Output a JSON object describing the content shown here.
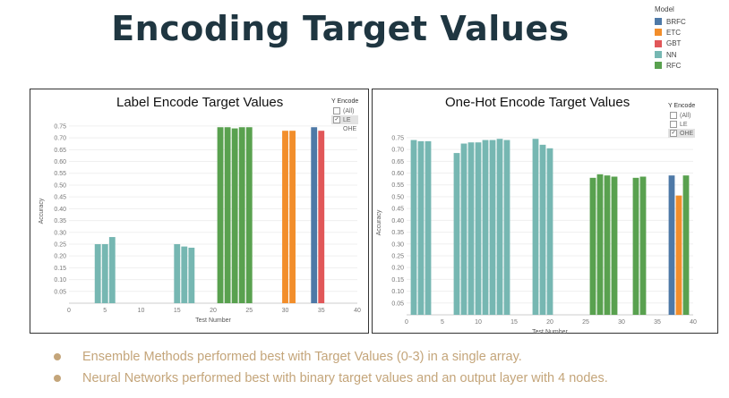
{
  "title": "Encoding Target Values",
  "legend": {
    "title": "Model",
    "items": [
      {
        "label": "BRFC",
        "color": "#4e79a7"
      },
      {
        "label": "ETC",
        "color": "#f28e2b"
      },
      {
        "label": "GBT",
        "color": "#e15759"
      },
      {
        "label": "NN",
        "color": "#76b7b2"
      },
      {
        "label": "RFC",
        "color": "#59a14f"
      }
    ]
  },
  "filter_le": {
    "title": "Y Encode",
    "options": [
      {
        "label": "(All)",
        "checked": false
      },
      {
        "label": "LE",
        "checked": true
      },
      {
        "label": "OHE",
        "checked": false
      }
    ]
  },
  "filter_ohe": {
    "title": "Y Encode",
    "options": [
      {
        "label": "(All)",
        "checked": false
      },
      {
        "label": "LE",
        "checked": false
      },
      {
        "label": "OHE",
        "checked": true
      }
    ]
  },
  "bullets": [
    "Ensemble Methods performed best with Target Values (0-3) in a single array.",
    "Neural Networks performed best with binary target values and an output layer with 4 nodes."
  ],
  "chart_data": [
    {
      "type": "bar",
      "title": "Label Encode Target Values",
      "xlabel": "Test Number",
      "ylabel": "Accuracy",
      "xlim": [
        0,
        40
      ],
      "ylim": [
        0,
        0.78
      ],
      "xticks": [
        0,
        5,
        10,
        15,
        20,
        25,
        30,
        35,
        40
      ],
      "yticks": [
        0.05,
        0.1,
        0.15,
        0.2,
        0.25,
        0.3,
        0.35,
        0.4,
        0.45,
        0.5,
        0.55,
        0.6,
        0.65,
        0.7,
        0.75
      ],
      "series": [
        {
          "name": "NN",
          "points": [
            [
              4,
              0.25
            ],
            [
              5,
              0.25
            ],
            [
              6,
              0.28
            ],
            [
              15,
              0.25
            ],
            [
              16,
              0.24
            ],
            [
              17,
              0.235
            ]
          ]
        },
        {
          "name": "RFC",
          "points": [
            [
              21,
              0.745
            ],
            [
              22,
              0.745
            ],
            [
              23,
              0.74
            ],
            [
              24,
              0.745
            ],
            [
              25,
              0.745
            ]
          ]
        },
        {
          "name": "ETC",
          "points": [
            [
              30,
              0.73
            ],
            [
              31,
              0.73
            ]
          ]
        },
        {
          "name": "BRFC",
          "points": [
            [
              34,
              0.745
            ]
          ]
        },
        {
          "name": "GBT",
          "points": [
            [
              35,
              0.73
            ]
          ]
        }
      ]
    },
    {
      "type": "bar",
      "title": "One-Hot Encode Target Values",
      "xlabel": "Test Number",
      "ylabel": "Accuracy",
      "xlim": [
        0,
        40
      ],
      "ylim": [
        0,
        0.78
      ],
      "xticks": [
        0,
        5,
        10,
        15,
        20,
        25,
        30,
        35,
        40
      ],
      "yticks": [
        0.05,
        0.1,
        0.15,
        0.2,
        0.25,
        0.3,
        0.35,
        0.4,
        0.45,
        0.5,
        0.55,
        0.6,
        0.65,
        0.7,
        0.75
      ],
      "series": [
        {
          "name": "NN",
          "points": [
            [
              1,
              0.74
            ],
            [
              2,
              0.735
            ],
            [
              3,
              0.735
            ],
            [
              7,
              0.685
            ],
            [
              8,
              0.725
            ],
            [
              9,
              0.73
            ],
            [
              10,
              0.73
            ],
            [
              11,
              0.74
            ],
            [
              12,
              0.74
            ],
            [
              13,
              0.745
            ],
            [
              14,
              0.74
            ],
            [
              18,
              0.745
            ],
            [
              19,
              0.72
            ],
            [
              20,
              0.705
            ]
          ]
        },
        {
          "name": "RFC",
          "points": [
            [
              26,
              0.58
            ],
            [
              27,
              0.595
            ],
            [
              28,
              0.59
            ],
            [
              29,
              0.585
            ],
            [
              32,
              0.58
            ],
            [
              33,
              0.585
            ],
            [
              39,
              0.59
            ]
          ]
        },
        {
          "name": "BRFC",
          "points": [
            [
              37,
              0.59
            ]
          ]
        },
        {
          "name": "ETC",
          "points": [
            [
              38,
              0.505
            ]
          ]
        }
      ]
    }
  ]
}
